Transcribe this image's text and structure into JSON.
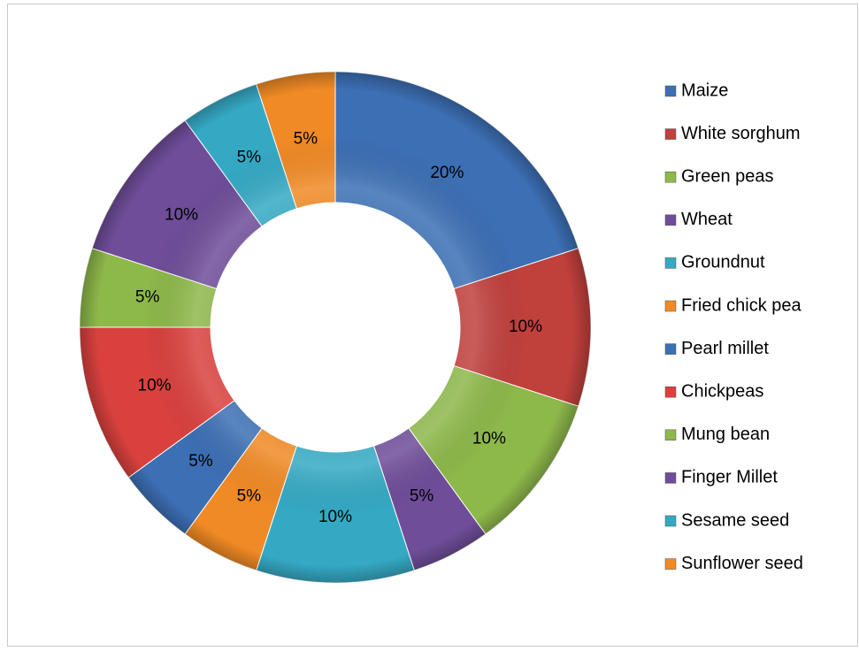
{
  "chart_data": {
    "type": "donut",
    "categories": [
      "Maize",
      "White sorghum",
      "Green peas",
      "Wheat",
      "Groundnut",
      "Fried chick pea",
      "Pearl millet",
      "Chickpeas",
      "Mung bean",
      "Finger Millet",
      "Sesame seed",
      "Sunflower seed"
    ],
    "values": [
      20,
      10,
      10,
      5,
      10,
      5,
      5,
      10,
      5,
      10,
      5,
      5
    ],
    "value_labels": [
      "20%",
      "10%",
      "10%",
      "5%",
      "10%",
      "5%",
      "5%",
      "10%",
      "5%",
      "10%",
      "5%",
      "5%"
    ],
    "colors": [
      "#3c6fb4",
      "#c0403c",
      "#8db84a",
      "#6f4d99",
      "#35a9c4",
      "#f08a25",
      "#3c6fb4",
      "#d9413e",
      "#8db84a",
      "#6f4d99",
      "#35a9c4",
      "#f08a25"
    ],
    "legend": "right"
  }
}
